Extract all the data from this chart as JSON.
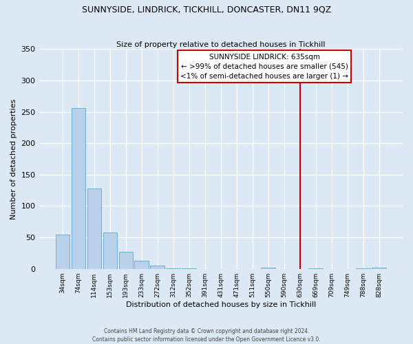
{
  "title": "SUNNYSIDE, LINDRICK, TICKHILL, DONCASTER, DN11 9QZ",
  "subtitle": "Size of property relative to detached houses in Tickhill",
  "xlabel": "Distribution of detached houses by size in Tickhill",
  "ylabel": "Number of detached properties",
  "footer_line1": "Contains HM Land Registry data © Crown copyright and database right 2024.",
  "footer_line2": "Contains public sector information licensed under the Open Government Licence v3.0.",
  "bin_labels": [
    "34sqm",
    "74sqm",
    "114sqm",
    "153sqm",
    "193sqm",
    "233sqm",
    "272sqm",
    "312sqm",
    "352sqm",
    "391sqm",
    "431sqm",
    "471sqm",
    "511sqm",
    "550sqm",
    "590sqm",
    "630sqm",
    "669sqm",
    "709sqm",
    "749sqm",
    "788sqm",
    "828sqm"
  ],
  "bar_heights": [
    55,
    256,
    128,
    58,
    27,
    13,
    5,
    1,
    1,
    0,
    0,
    0,
    0,
    2,
    0,
    0,
    1,
    0,
    0,
    1,
    2
  ],
  "bar_color": "#b8d0ea",
  "bar_edge_color": "#6aaed6",
  "background_color": "#dce9f5",
  "grid_color": "#ffffff",
  "annotation_line_color": "#cc0000",
  "annotation_box_line1": "SUNNYSIDE LINDRICK: 635sqm",
  "annotation_box_line2": "← >99% of detached houses are smaller (545)",
  "annotation_box_line3": "<1% of semi-detached houses are larger (1) →",
  "annotation_box_facecolor": "#ffffff",
  "annotation_box_edgecolor": "#cc0000",
  "ylim": [
    0,
    350
  ],
  "yticks": [
    0,
    50,
    100,
    150,
    200,
    250,
    300,
    350
  ]
}
